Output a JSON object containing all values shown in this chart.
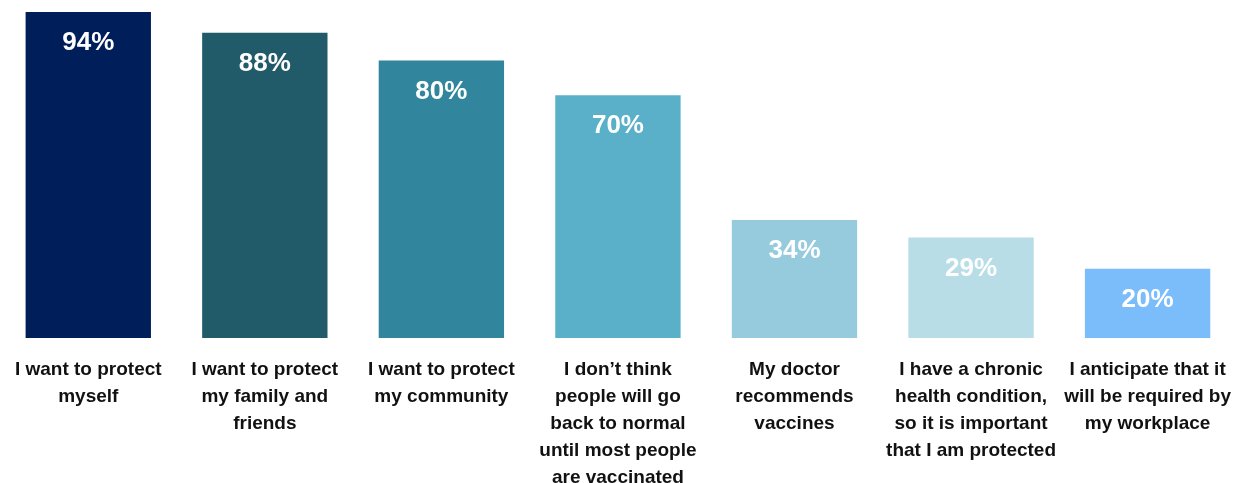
{
  "chart_data": {
    "type": "bar",
    "categories": [
      "I want to protect myself",
      "I want to protect my family and friends",
      "I want to protect my community",
      "I don’t think people will go back to normal until most people are vaccinated",
      "My doctor recommends vaccines",
      "I have a chronic health condition, so it is important that I am protected",
      "I anticipate that it will be required by my workplace"
    ],
    "values": [
      94,
      88,
      80,
      70,
      34,
      29,
      20
    ],
    "colors": [
      "#001e5a",
      "#215a69",
      "#31859c",
      "#5ab0c9",
      "#96cbdd",
      "#b8dde7",
      "#7abdfa"
    ],
    "value_labels": [
      "94%",
      "88%",
      "80%",
      "70%",
      "34%",
      "29%",
      "20%"
    ]
  }
}
